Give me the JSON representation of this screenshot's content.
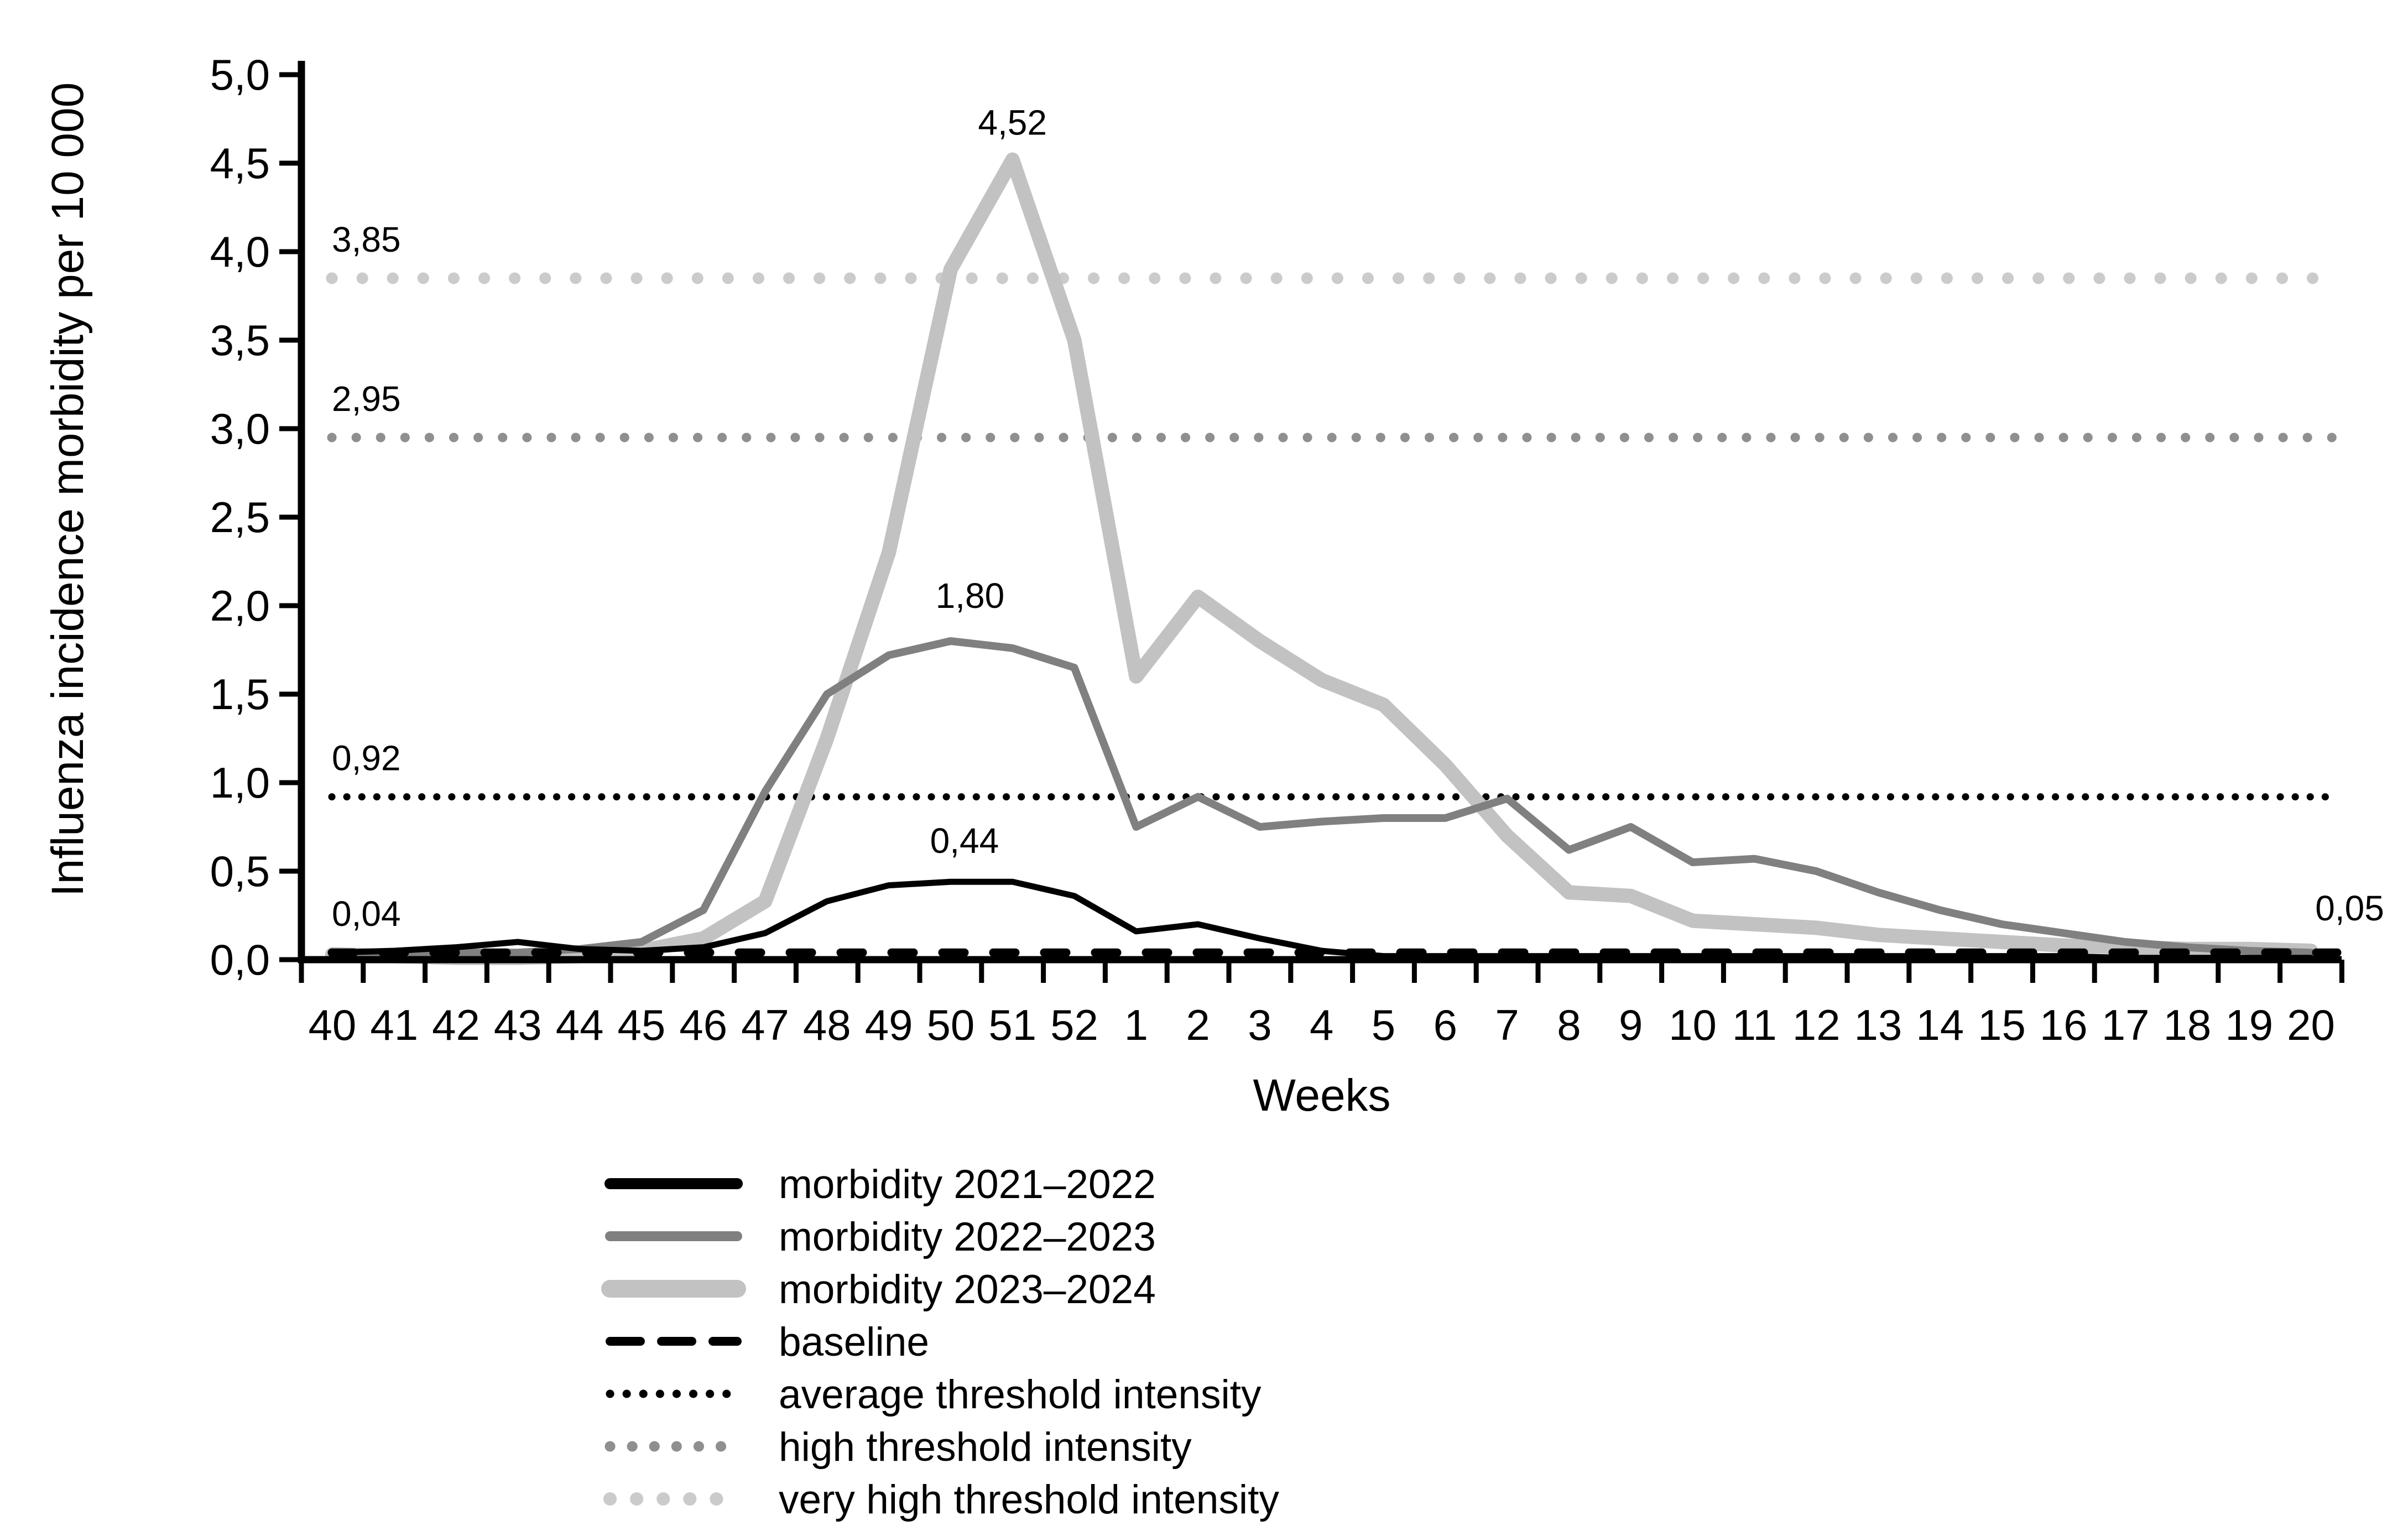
{
  "chart_data": {
    "type": "line",
    "title": "",
    "xlabel": "Weeks",
    "ylabel": "Influenza incidence morbidity per 10 000",
    "ylim": [
      0,
      5
    ],
    "ytick_step": 0.5,
    "y_tick_labels": [
      "0,0",
      "0,5",
      "1,0",
      "1,5",
      "2,0",
      "2,5",
      "3,0",
      "3,5",
      "4,0",
      "4,5",
      "5,0"
    ],
    "decimal_separator": ",",
    "grid": false,
    "legend_position": "bottom-left",
    "categories": [
      "40",
      "41",
      "42",
      "43",
      "44",
      "45",
      "46",
      "47",
      "48",
      "49",
      "50",
      "51",
      "52",
      "1",
      "2",
      "3",
      "4",
      "5",
      "6",
      "7",
      "8",
      "9",
      "10",
      "11",
      "12",
      "13",
      "14",
      "15",
      "16",
      "17",
      "18",
      "19",
      "20"
    ],
    "series": [
      {
        "name": "morbidity 2021–2022",
        "style": "solid",
        "color": "#000000",
        "width": 11,
        "values": [
          0.04,
          0.05,
          0.07,
          0.1,
          0.06,
          0.05,
          0.07,
          0.15,
          0.33,
          0.42,
          0.44,
          0.44,
          0.36,
          0.16,
          0.2,
          0.12,
          0.05,
          0.02,
          0.02,
          0.02,
          0.02,
          0.02,
          0.02,
          0.02,
          0.02,
          0.02,
          0.02,
          0.02,
          0.02,
          0.01,
          0.01,
          0.01,
          0.01
        ]
      },
      {
        "name": "morbidity 2022–2023",
        "style": "solid",
        "color": "#808080",
        "width": 14,
        "values": [
          0.03,
          0.03,
          0.04,
          0.04,
          0.06,
          0.1,
          0.28,
          0.95,
          1.5,
          1.72,
          1.8,
          1.76,
          1.65,
          0.75,
          0.92,
          0.75,
          0.78,
          0.8,
          0.8,
          0.91,
          0.62,
          0.75,
          0.55,
          0.57,
          0.5,
          0.38,
          0.28,
          0.2,
          0.15,
          0.1,
          0.07,
          0.05,
          0.04
        ]
      },
      {
        "name": "morbidity 2023–2024",
        "style": "solid",
        "color": "#c2c2c2",
        "width": 26,
        "values": [
          0.03,
          0.02,
          0.01,
          0.01,
          0.02,
          0.05,
          0.12,
          0.33,
          1.25,
          2.3,
          3.9,
          4.52,
          3.5,
          1.6,
          2.05,
          1.8,
          1.58,
          1.44,
          1.1,
          0.7,
          0.38,
          0.36,
          0.22,
          0.2,
          0.18,
          0.14,
          0.12,
          0.1,
          0.08,
          0.07,
          0.06,
          0.06,
          0.05
        ]
      },
      {
        "name": "baseline",
        "style": "dashed",
        "color": "#000000",
        "width": 15,
        "constant": 0.04
      },
      {
        "name": "average threshold intensity",
        "style": "dotted",
        "color": "#000000",
        "width": 13,
        "constant": 0.92
      },
      {
        "name": "high threshold intensity",
        "style": "dotted",
        "color": "#8f8f8f",
        "width": 17,
        "constant": 2.95
      },
      {
        "name": "very high threshold intensity",
        "style": "dotted",
        "color": "#cbcbcb",
        "width": 21,
        "constant": 3.85
      }
    ],
    "annotations": [
      {
        "text": "3,85",
        "week": "40",
        "value": 3.85,
        "align": "left"
      },
      {
        "text": "2,95",
        "week": "40",
        "value": 2.95,
        "align": "left"
      },
      {
        "text": "0,92",
        "week": "40",
        "value": 0.92,
        "align": "left"
      },
      {
        "text": "0,04",
        "week": "40",
        "value": 0.04,
        "align": "left"
      },
      {
        "text": "4,52",
        "week": "51",
        "value": 4.52,
        "align": "center"
      },
      {
        "text": "1,80",
        "week": "50",
        "value": 1.8,
        "align": "center"
      },
      {
        "text": "0,44",
        "week": "50",
        "value": 0.44,
        "align": "center"
      },
      {
        "text": "0,05",
        "week": "20",
        "value": 0.05,
        "align": "center"
      }
    ]
  },
  "colors": {
    "background": "#ffffff",
    "axis": "#000000"
  }
}
